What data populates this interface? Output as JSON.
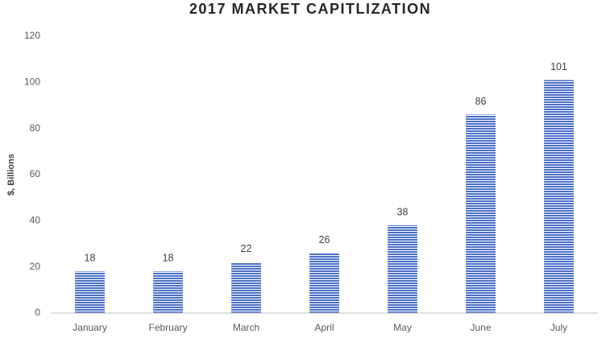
{
  "chart_data": {
    "type": "bar",
    "title": "2017 MARKET CAPITLIZATION",
    "y_label": "$, Billions",
    "categories": [
      "January",
      "February",
      "March",
      "April",
      "May",
      "June",
      "July"
    ],
    "values": [
      18,
      18,
      22,
      26,
      38,
      86,
      101
    ],
    "color": "#4a6fc7",
    "ylim": [
      0,
      120
    ],
    "yticks": [
      0,
      20,
      40,
      60,
      80,
      100,
      120
    ],
    "grid": false
  }
}
